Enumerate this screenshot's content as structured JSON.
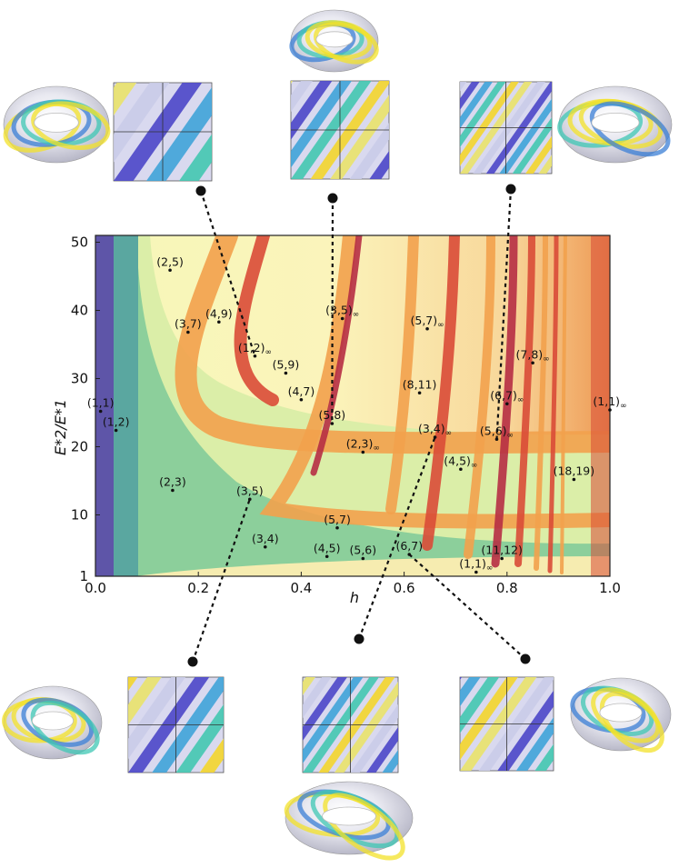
{
  "chart_data": {
    "type": "heatmap",
    "title": "",
    "xlabel": "h",
    "ylabel": "E*2/E*1",
    "xlim": [
      0.0,
      1.0
    ],
    "ylim": [
      1,
      51
    ],
    "x_ticks": [
      "0.0",
      "0.2",
      "0.4",
      "0.6",
      "0.8",
      "1.0"
    ],
    "x_tick_values": [
      0.0,
      0.2,
      0.4,
      0.6,
      0.8,
      1.0
    ],
    "y_ticks": [
      "1",
      "10",
      "20",
      "30",
      "40",
      "50"
    ],
    "y_tick_values": [
      1,
      10,
      20,
      30,
      40,
      50
    ],
    "region_labels": [
      {
        "label": "(2,5)",
        "sub": "",
        "x": 0.145,
        "y": 45.9
      },
      {
        "label": "(3,7)",
        "sub": "",
        "x": 0.18,
        "y": 36.8
      },
      {
        "label": "(4,9)",
        "sub": "",
        "x": 0.24,
        "y": 38.3
      },
      {
        "label": "(1,2)",
        "sub": "∞",
        "x": 0.31,
        "y": 33.3
      },
      {
        "label": "(3,5)",
        "sub": "∞",
        "x": 0.48,
        "y": 38.8
      },
      {
        "label": "(5,7)",
        "sub": "∞",
        "x": 0.645,
        "y": 37.3
      },
      {
        "label": "(7,8)",
        "sub": "∞",
        "x": 0.85,
        "y": 32.3
      },
      {
        "label": "(5,9)",
        "sub": "",
        "x": 0.37,
        "y": 30.8
      },
      {
        "label": "(4,7)",
        "sub": "",
        "x": 0.4,
        "y": 26.9
      },
      {
        "label": "(6,7)",
        "sub": "∞",
        "x": 0.8,
        "y": 26.3
      },
      {
        "label": "(1,1)",
        "sub": "",
        "x": 0.01,
        "y": 25.2
      },
      {
        "label": "(8,11)",
        "sub": "",
        "x": 0.63,
        "y": 27.9
      },
      {
        "label": "(1,1)",
        "sub": "∞",
        "x": 1.0,
        "y": 25.4
      },
      {
        "label": "(5,8)",
        "sub": "",
        "x": 0.46,
        "y": 23.4
      },
      {
        "label": "(3,4)",
        "sub": "∞",
        "x": 0.66,
        "y": 21.4
      },
      {
        "label": "(5,6)",
        "sub": "∞",
        "x": 0.78,
        "y": 21.1
      },
      {
        "label": "(1,2)",
        "sub": "",
        "x": 0.04,
        "y": 22.4
      },
      {
        "label": "(2,3)",
        "sub": "∞",
        "x": 0.52,
        "y": 19.2
      },
      {
        "label": "(4,5)",
        "sub": "∞",
        "x": 0.71,
        "y": 16.7
      },
      {
        "label": "(18,19)",
        "sub": "",
        "x": 0.93,
        "y": 15.2
      },
      {
        "label": "(2,3)",
        "sub": "",
        "x": 0.15,
        "y": 13.6
      },
      {
        "label": "(3,5)",
        "sub": "",
        "x": 0.3,
        "y": 12.3
      },
      {
        "label": "(5,7)",
        "sub": "",
        "x": 0.47,
        "y": 8.1
      },
      {
        "label": "(3,4)",
        "sub": "",
        "x": 0.33,
        "y": 5.3
      },
      {
        "label": "(4,5)",
        "sub": "",
        "x": 0.45,
        "y": 3.9
      },
      {
        "label": "(5,6)",
        "sub": "",
        "x": 0.52,
        "y": 3.6
      },
      {
        "label": "(6,7)",
        "sub": "",
        "x": 0.61,
        "y": 4.2
      },
      {
        "label": "(11,12)",
        "sub": "",
        "x": 0.79,
        "y": 3.6
      },
      {
        "label": "(1,1)",
        "sub": "∞",
        "x": 0.74,
        "y": 1.6
      }
    ],
    "insets_top": [
      "torus-and-pattern-1",
      "torus-and-pattern-2",
      "torus-and-pattern-3"
    ],
    "insets_bottom": [
      "torus-and-pattern-4",
      "torus-and-pattern-5",
      "torus-and-pattern-6"
    ],
    "colors": {
      "purple": "#5e55a8",
      "teal": "#5aa7a0",
      "green": "#8ccf9b",
      "pale": "#f2f5b4",
      "cream": "#fbf2b8",
      "orange": "#f2a14d",
      "red": "#d94b37",
      "darkred": "#b62d44"
    }
  }
}
